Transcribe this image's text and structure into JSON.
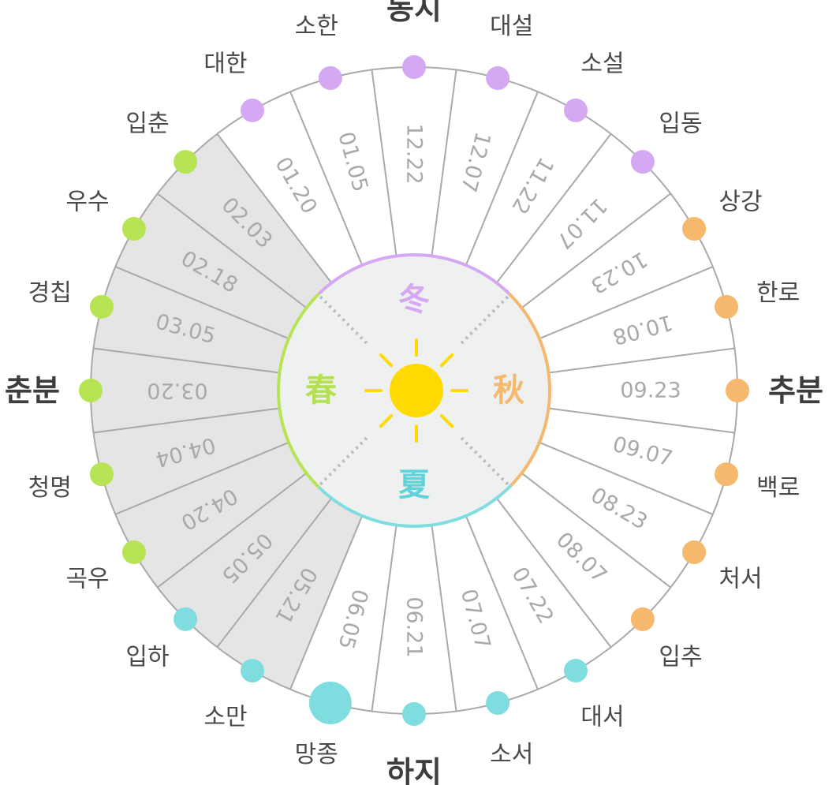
{
  "wheel": {
    "center_label": "",
    "seasons": [
      {
        "key": "winter",
        "char": "冬",
        "color": "#d5a8f3",
        "position": "top"
      },
      {
        "key": "autumn",
        "char": "秋",
        "color": "#f6b86c",
        "position": "right"
      },
      {
        "key": "summer",
        "char": "夏",
        "color": "#5fd3d9",
        "position": "bottom"
      },
      {
        "key": "spring",
        "char": "春",
        "color": "#b4e052",
        "position": "left"
      }
    ],
    "colors": {
      "winter": "#d5a8f3",
      "autumn": "#f6b86c",
      "summer": "#7fdde0",
      "spring": "#b7e454",
      "spring_sector_fill": "#e5e5e5",
      "inner_fill": "#eff1f1",
      "line": "#a9a9a9",
      "sun": "#ffd900"
    },
    "terms": [
      {
        "name": "동지",
        "date": "12.22",
        "season": "winter",
        "major": true
      },
      {
        "name": "대설",
        "date": "12.07",
        "season": "winter",
        "major": false
      },
      {
        "name": "소설",
        "date": "11.22",
        "season": "winter",
        "major": false
      },
      {
        "name": "입동",
        "date": "11.07",
        "season": "winter",
        "major": false
      },
      {
        "name": "상강",
        "date": "10.23",
        "season": "autumn",
        "major": false
      },
      {
        "name": "한로",
        "date": "10.08",
        "season": "autumn",
        "major": false
      },
      {
        "name": "추분",
        "date": "09.23",
        "season": "autumn",
        "major": true
      },
      {
        "name": "백로",
        "date": "09.07",
        "season": "autumn",
        "major": false
      },
      {
        "name": "처서",
        "date": "08.23",
        "season": "autumn",
        "major": false
      },
      {
        "name": "입추",
        "date": "08.07",
        "season": "autumn",
        "major": false
      },
      {
        "name": "대서",
        "date": "07.22",
        "season": "summer",
        "major": false
      },
      {
        "name": "소서",
        "date": "07.07",
        "season": "summer",
        "major": false
      },
      {
        "name": "하지",
        "date": "06.21",
        "season": "summer",
        "major": true
      },
      {
        "name": "망종",
        "date": "06.05",
        "season": "summer",
        "major": false,
        "large_dot": true
      },
      {
        "name": "소만",
        "date": "05.21",
        "season": "summer",
        "major": false
      },
      {
        "name": "입하",
        "date": "05.05",
        "season": "summer",
        "major": false
      },
      {
        "name": "곡우",
        "date": "04.20",
        "season": "spring",
        "major": false
      },
      {
        "name": "청명",
        "date": "04.04",
        "season": "spring",
        "major": false
      },
      {
        "name": "춘분",
        "date": "03.20",
        "season": "spring",
        "major": true
      },
      {
        "name": "경칩",
        "date": "03.05",
        "season": "spring",
        "major": false
      },
      {
        "name": "우수",
        "date": "02.18",
        "season": "spring",
        "major": false
      },
      {
        "name": "입춘",
        "date": "02.03",
        "season": "spring",
        "major": false
      },
      {
        "name": "대한",
        "date": "01.20",
        "season": "winter",
        "major": false
      },
      {
        "name": "소한",
        "date": "01.05",
        "season": "winter",
        "major": false
      }
    ],
    "highlighted_dates": [
      "02.03",
      "02.18",
      "03.05",
      "03.20",
      "04.04",
      "04.20",
      "05.05",
      "05.21"
    ],
    "sun_icon": "sun-icon"
  }
}
